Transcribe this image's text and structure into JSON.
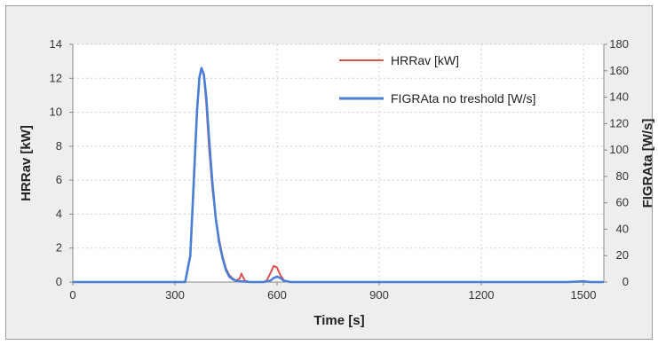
{
  "chart_data": {
    "type": "line",
    "xlabel": "Time [s]",
    "ylabel_left": "HRRav [kW]",
    "ylabel_right": "FIGRAta [W/s]",
    "xlim": [
      0,
      1560
    ],
    "ylim_left": [
      0,
      14
    ],
    "ylim_right": [
      0,
      180
    ],
    "x_ticks": [
      0,
      300,
      600,
      900,
      1200,
      1500
    ],
    "y_left_ticks": [
      0,
      2,
      4,
      6,
      8,
      10,
      12,
      14
    ],
    "y_right_ticks": [
      0,
      20,
      40,
      60,
      80,
      100,
      120,
      140,
      160,
      180
    ],
    "grid": true,
    "legend_position": "top-right",
    "colors": {
      "HRRav [kW]": "#d9534f",
      "FIGRAta no treshold [W/s]": "#4a7fd6"
    },
    "series": [
      {
        "name": "HRRav [kW]",
        "axis": "left",
        "x": [
          0,
          300,
          330,
          345,
          355,
          365,
          372,
          378,
          385,
          392,
          400,
          410,
          420,
          430,
          440,
          450,
          460,
          470,
          480,
          490,
          495,
          500,
          505,
          510,
          520,
          540,
          560,
          570,
          580,
          590,
          600,
          610,
          620,
          640,
          700,
          800,
          1000,
          1200,
          1450,
          1500,
          1520,
          1560
        ],
        "y": [
          0,
          0,
          0,
          1.5,
          5.5,
          10.0,
          12.0,
          12.6,
          12.2,
          10.5,
          8.0,
          5.5,
          3.8,
          2.5,
          1.5,
          0.8,
          0.4,
          0.2,
          0.1,
          0.2,
          0.5,
          0.3,
          0.1,
          0.05,
          0,
          0,
          0,
          0.1,
          0.5,
          0.95,
          0.85,
          0.4,
          0.1,
          0,
          0,
          0,
          0,
          0,
          0,
          0.05,
          0,
          0
        ]
      },
      {
        "name": "FIGRAta no treshold [W/s]",
        "axis": "right",
        "x": [
          0,
          300,
          330,
          345,
          355,
          365,
          372,
          378,
          385,
          392,
          400,
          410,
          420,
          430,
          440,
          450,
          460,
          470,
          480,
          490,
          500,
          510,
          520,
          560,
          580,
          590,
          600,
          610,
          620,
          640,
          700,
          800,
          1000,
          1200,
          1450,
          1500,
          1520,
          1560
        ],
        "y": [
          0,
          0,
          0,
          20,
          75,
          130,
          155,
          162,
          157,
          140,
          110,
          75,
          48,
          30,
          18,
          9,
          4,
          2,
          1,
          0.5,
          0.5,
          0.3,
          0,
          0,
          1,
          3,
          4,
          3,
          1,
          0,
          0,
          0,
          0,
          0,
          0,
          0.5,
          0,
          0
        ]
      }
    ]
  }
}
